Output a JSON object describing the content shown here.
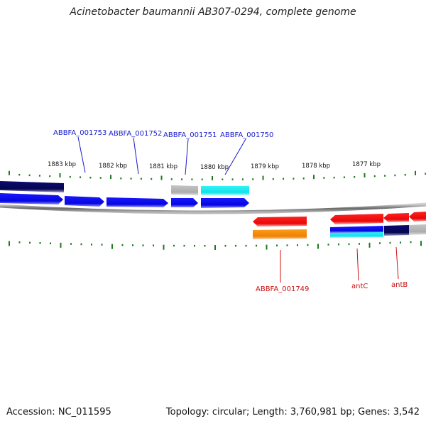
{
  "title": "Acinetobacter baumannii AB307-0294, complete genome",
  "footer": {
    "accession": "Accession: NC_011595",
    "topology": "Topology: circular; Length: 3,760,981 bp; Genes: 3,542"
  },
  "ruler": {
    "labels": [
      "1883 kbp",
      "1882 kbp",
      "1881 kbp",
      "1880 kbp",
      "1879 kbp",
      "1878 kbp",
      "1877 kbp"
    ]
  },
  "gene_labels": {
    "top": [
      "ABBFA_001753",
      "ABBFA_001752",
      "ABBFA_001751",
      "ABBFA_001750"
    ],
    "bottom": [
      "ABBFA_001749",
      "antC",
      "antB"
    ]
  },
  "colors": {
    "forward_gene": "#0a0ae6",
    "reverse_gene": "#ee1111",
    "navy_feature": "#0a0a6e",
    "cyan_feature": "#10e8ee",
    "gray_feature": "#b4b4b4",
    "orange_feature": "#f08a10",
    "tick": "#207820",
    "label_top": "#1a1acc",
    "label_bottom": "#cc1111"
  }
}
